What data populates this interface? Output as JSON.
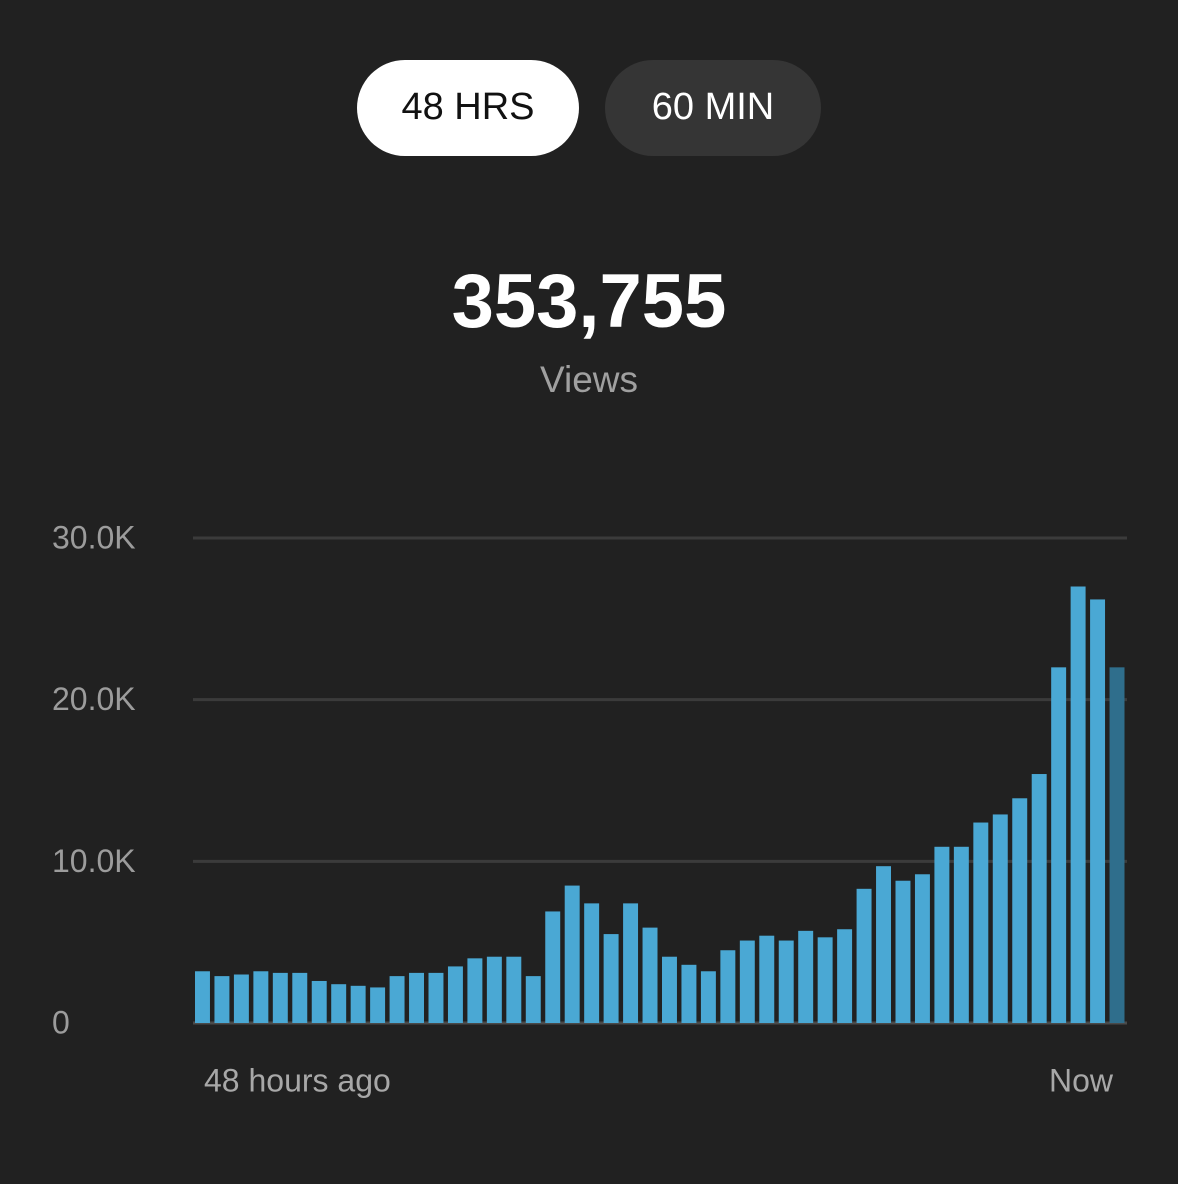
{
  "tabs": [
    {
      "label": "48 HRS",
      "selected": true
    },
    {
      "label": "60 MIN",
      "selected": false
    }
  ],
  "total": "353,755",
  "total_label": "Views",
  "chart_data": {
    "type": "bar",
    "x_range_labels": [
      "48 hours ago",
      "Now"
    ],
    "values": [
      3200,
      2900,
      3000,
      3200,
      3100,
      3100,
      2600,
      2400,
      2300,
      2200,
      2900,
      3100,
      3100,
      3500,
      4000,
      4100,
      4100,
      2900,
      6900,
      8500,
      7400,
      5500,
      7400,
      5900,
      4100,
      3600,
      3200,
      4500,
      5100,
      5400,
      5100,
      5700,
      5300,
      5800,
      8300,
      9700,
      8800,
      9200,
      10900,
      10900,
      12400,
      12900,
      13900,
      15400,
      22000,
      27000,
      26200,
      22000
    ],
    "colors": [
      "#4aa8d4",
      "#4aa8d4",
      "#4aa8d4",
      "#4aa8d4",
      "#4aa8d4",
      "#4aa8d4",
      "#4aa8d4",
      "#4aa8d4",
      "#4aa8d4",
      "#4aa8d4",
      "#4aa8d4",
      "#4aa8d4",
      "#4aa8d4",
      "#4aa8d4",
      "#4aa8d4",
      "#4aa8d4",
      "#4aa8d4",
      "#4aa8d4",
      "#4aa8d4",
      "#4aa8d4",
      "#4aa8d4",
      "#4aa8d4",
      "#4aa8d4",
      "#4aa8d4",
      "#4aa8d4",
      "#4aa8d4",
      "#4aa8d4",
      "#4aa8d4",
      "#4aa8d4",
      "#4aa8d4",
      "#4aa8d4",
      "#4aa8d4",
      "#4aa8d4",
      "#4aa8d4",
      "#4aa8d4",
      "#4aa8d4",
      "#4aa8d4",
      "#4aa8d4",
      "#4aa8d4",
      "#4aa8d4",
      "#4aa8d4",
      "#4aa8d4",
      "#4aa8d4",
      "#4aa8d4",
      "#4aa8d4",
      "#4aa8d4",
      "#4aa8d4",
      "#2f6e8c"
    ],
    "ylim": [
      0,
      30000
    ],
    "yticks": [
      0,
      {
        "value": 10000,
        "label": "10.0K"
      },
      {
        "value": 20000,
        "label": "20.0K"
      },
      {
        "value": 30000,
        "label": "30.0K"
      }
    ],
    "grid": true
  }
}
